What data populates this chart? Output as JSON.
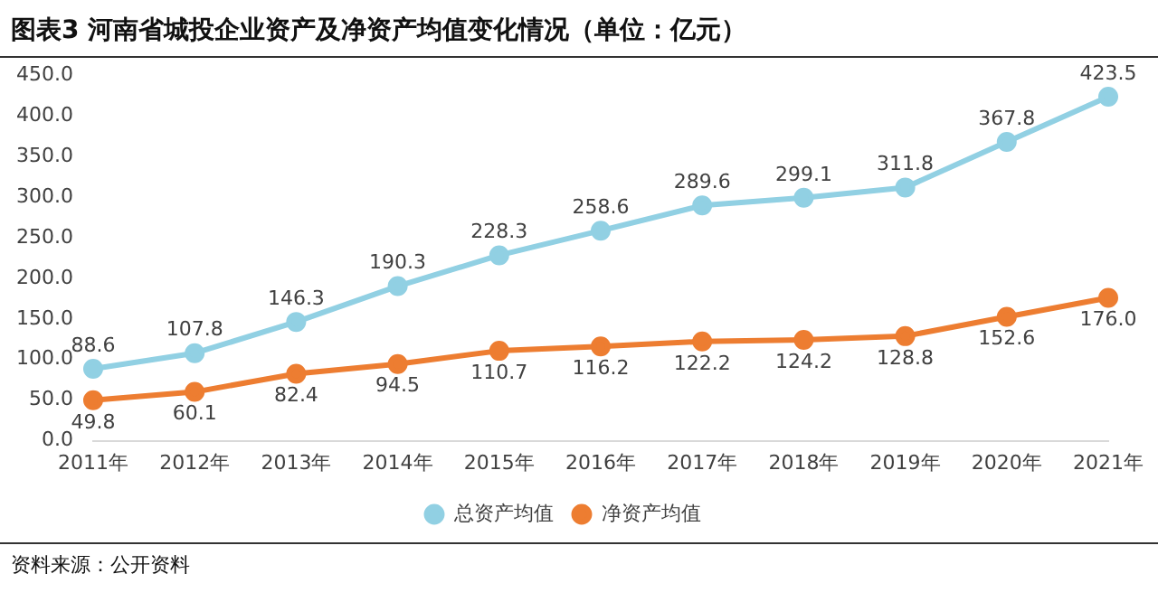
{
  "chart_data": {
    "type": "line",
    "title": "图表3   河南省城投企业资产及净资产均值变化情况（单位：亿元）",
    "categories": [
      "2011年",
      "2012年",
      "2013年",
      "2014年",
      "2015年",
      "2016年",
      "2017年",
      "2018年",
      "2019年",
      "2020年",
      "2021年"
    ],
    "series": [
      {
        "name": "总资产均值",
        "color": "#91d0e3",
        "values": [
          88.6,
          107.8,
          146.3,
          190.3,
          228.3,
          258.6,
          289.6,
          299.1,
          311.8,
          367.8,
          423.5
        ],
        "value_labels": [
          "88.6",
          "107.8",
          "146.3",
          "190.3",
          "228.3",
          "258.6",
          "289.6",
          "299.1",
          "311.8",
          "367.8",
          "423.5"
        ]
      },
      {
        "name": "净资产均值",
        "color": "#ed7d31",
        "values": [
          49.8,
          60.1,
          82.4,
          94.5,
          110.7,
          116.2,
          122.2,
          124.2,
          128.8,
          152.6,
          176.0
        ],
        "value_labels": [
          "49.8",
          "60.1",
          "82.4",
          "94.5",
          "110.7",
          "116.2",
          "122.2",
          "124.2",
          "128.8",
          "152.6",
          "176.0"
        ]
      }
    ],
    "ylim": [
      0,
      450
    ],
    "yticks": [
      {
        "value": 0,
        "label": "0.0"
      },
      {
        "value": 50,
        "label": "50.0"
      },
      {
        "value": 100,
        "label": "100.0"
      },
      {
        "value": 150,
        "label": "150.0"
      },
      {
        "value": 200,
        "label": "200.0"
      },
      {
        "value": 250,
        "label": "250.0"
      },
      {
        "value": 300,
        "label": "300.0"
      },
      {
        "value": 350,
        "label": "350.0"
      },
      {
        "value": 400,
        "label": "400.0"
      },
      {
        "value": 450,
        "label": "450.0"
      }
    ],
    "marker": "circle",
    "line_style": "solid",
    "legend": "bottom",
    "annotations": [
      "资料来源：公开资料"
    ]
  }
}
